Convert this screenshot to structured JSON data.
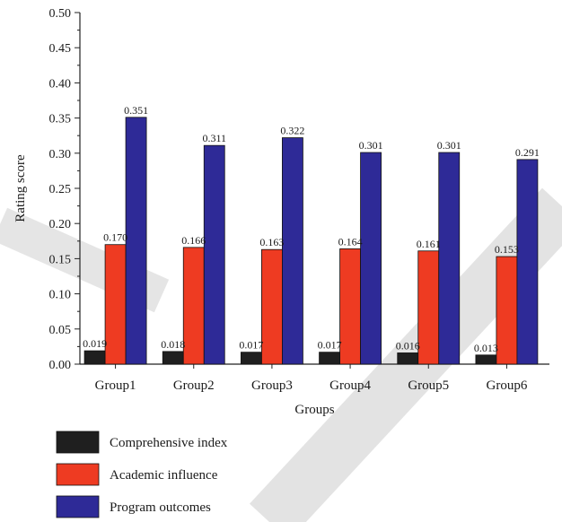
{
  "chart_data": {
    "type": "bar",
    "title": "",
    "xlabel": "Groups",
    "ylabel": "Rating score",
    "ylim": [
      0,
      0.5
    ],
    "yticks": [
      "0.00",
      "0.05",
      "0.10",
      "0.15",
      "0.20",
      "0.25",
      "0.30",
      "0.35",
      "0.40",
      "0.45",
      "0.50"
    ],
    "categories": [
      "Group1",
      "Group2",
      "Group3",
      "Group4",
      "Group5",
      "Group6"
    ],
    "series": [
      {
        "name": "Comprehensive index",
        "color": "#1f1f1f",
        "values": [
          0.019,
          0.018,
          0.017,
          0.017,
          0.016,
          0.013
        ],
        "labels": [
          "0.019",
          "0.018",
          "0.017",
          "0.017",
          "0.016",
          "0.013"
        ]
      },
      {
        "name": "Academic influence",
        "color": "#ee3b22",
        "values": [
          0.17,
          0.166,
          0.163,
          0.164,
          0.161,
          0.153
        ],
        "labels": [
          "0.170",
          "0.166",
          "0.163",
          "0.164",
          "0.161",
          "0.153"
        ]
      },
      {
        "name": "Program outcomes",
        "color": "#2e2a97",
        "values": [
          0.351,
          0.311,
          0.322,
          0.301,
          0.301,
          0.291
        ],
        "labels": [
          "0.351",
          "0.311",
          "0.322",
          "0.301",
          "0.301",
          "0.291"
        ]
      }
    ],
    "legend": "bottom-left",
    "grid": false
  }
}
